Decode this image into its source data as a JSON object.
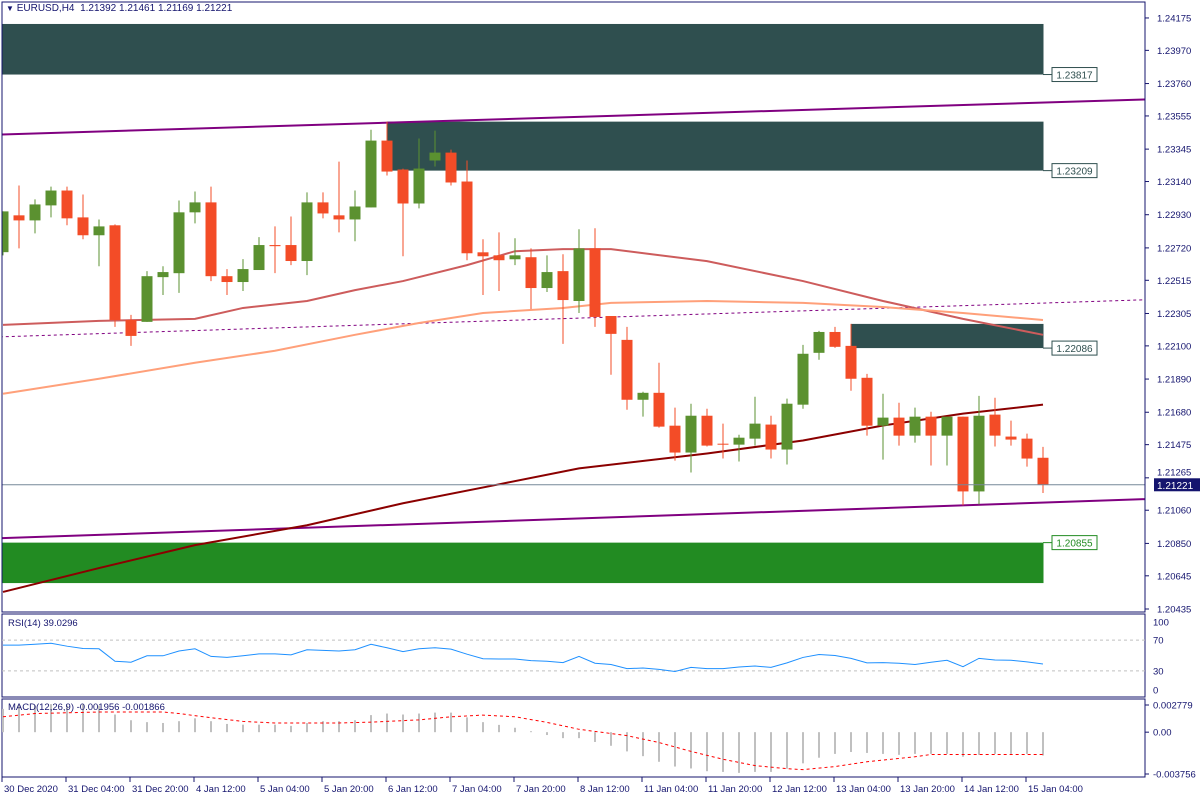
{
  "header": {
    "symbol": "EURUSD,H4",
    "open": "1.21392",
    "high": "1.21461",
    "low": "1.21169",
    "close": "1.21221",
    "menu_icon": "triangle-down-icon"
  },
  "colors": {
    "bull": "#5b9130",
    "bear": "#f34c27",
    "zone_dark": "#2f4f4f",
    "zone_green": "#228b22",
    "trendline": "#800080",
    "ma_fast": "#cd5c5c",
    "ma_mid": "#ffa07a",
    "ma_slow": "#8b0000",
    "rsi": "#1e90ff",
    "macd_hist": "#c0c0c0",
    "macd_signal": "#ff0000",
    "axis": "#14146e",
    "price_line": "#778899"
  },
  "chart_data": {
    "type": "candlestick",
    "price_axis": {
      "ylim": [
        1.20416,
        1.24276
      ],
      "ticks": [
        "1.24175",
        "1.23970",
        "1.23760",
        "1.23555",
        "1.23345",
        "1.23140",
        "1.22930",
        "1.22720",
        "1.22515",
        "1.22305",
        "1.22100",
        "1.21890",
        "1.21680",
        "1.21475",
        "1.21265",
        "1.21060",
        "1.20850",
        "1.20645",
        "1.20435"
      ]
    },
    "time_axis": {
      "labels": [
        "30 Dec 2020",
        "31 Dec 04:00",
        "31 Dec 20:00",
        "4 Jan 12:00",
        "5 Jan 04:00",
        "5 Jan 20:00",
        "6 Jan 12:00",
        "7 Jan 04:00",
        "7 Jan 20:00",
        "8 Jan 12:00",
        "11 Jan 04:00",
        "11 Jan 20:00",
        "12 Jan 12:00",
        "13 Jan 04:00",
        "13 Jan 20:00",
        "14 Jan 12:00",
        "15 Jan 04:00"
      ]
    },
    "ohlc_fields": [
      "open",
      "high",
      "low",
      "close"
    ],
    "ohlc": [
      [
        1.22693,
        1.22951,
        1.22673,
        1.22951
      ],
      [
        1.22926,
        1.23115,
        1.22717,
        1.22894
      ],
      [
        1.22894,
        1.23027,
        1.22812,
        1.22995
      ],
      [
        1.22989,
        1.23108,
        1.22913,
        1.23083
      ],
      [
        1.23083,
        1.23108,
        1.22863,
        1.22907
      ],
      [
        1.22913,
        1.23058,
        1.22775,
        1.228
      ],
      [
        1.228,
        1.229,
        1.22604,
        1.22856
      ],
      [
        1.22863,
        1.22869,
        1.2222,
        1.22264
      ],
      [
        1.22264,
        1.22296,
        1.221,
        1.22163
      ],
      [
        1.22252,
        1.22573,
        1.22252,
        1.22541
      ],
      [
        1.22535,
        1.22604,
        1.22422,
        1.22567
      ],
      [
        1.2256,
        1.2302,
        1.22435,
        1.22945
      ],
      [
        1.22945,
        1.23077,
        1.22875,
        1.23008
      ],
      [
        1.23008,
        1.23108,
        1.2251,
        1.22541
      ],
      [
        1.22541,
        1.22586,
        1.22422,
        1.22504
      ],
      [
        1.22504,
        1.22649,
        1.22447,
        1.22586
      ],
      [
        1.2258,
        1.22788,
        1.2258,
        1.22738
      ],
      [
        1.22738,
        1.22856,
        1.2256,
        1.22731
      ],
      [
        1.22738,
        1.22919,
        1.22611,
        1.22637
      ],
      [
        1.22637,
        1.23071,
        1.22548,
        1.23008
      ],
      [
        1.23008,
        1.23071,
        1.22907,
        1.22938
      ],
      [
        1.22926,
        1.23266,
        1.22818,
        1.229
      ],
      [
        1.229,
        1.23083,
        1.22762,
        1.22982
      ],
      [
        1.22976,
        1.23468,
        1.22976,
        1.23399
      ],
      [
        1.23399,
        1.23519,
        1.23178,
        1.23203
      ],
      [
        1.23216,
        1.23222,
        1.22667,
        1.23001
      ],
      [
        1.23001,
        1.23412,
        1.2297,
        1.23222
      ],
      [
        1.23273,
        1.23462,
        1.23235,
        1.23323
      ],
      [
        1.23323,
        1.23342,
        1.23115,
        1.23134
      ],
      [
        1.2314,
        1.23273,
        1.22642,
        1.22686
      ],
      [
        1.22692,
        1.22775,
        1.22422,
        1.22667
      ],
      [
        1.22673,
        1.22818,
        1.22447,
        1.22642
      ],
      [
        1.22648,
        1.22781,
        1.22611,
        1.22673
      ],
      [
        1.22661,
        1.22717,
        1.22333,
        1.22466
      ],
      [
        1.22466,
        1.22673,
        1.22441,
        1.22567
      ],
      [
        1.22573,
        1.2268,
        1.22113,
        1.2239
      ],
      [
        1.22384,
        1.22838,
        1.22308,
        1.22717
      ],
      [
        1.22717,
        1.22844,
        1.2222,
        1.22283
      ],
      [
        1.22289,
        1.22289,
        1.21917,
        1.22176
      ],
      [
        1.22138,
        1.2222,
        1.21696,
        1.21759
      ],
      [
        1.21759,
        1.2181,
        1.21652,
        1.21803
      ],
      [
        1.21803,
        1.21993,
        1.21583,
        1.21589
      ],
      [
        1.21595,
        1.21709,
        1.21374,
        1.21425
      ],
      [
        1.21425,
        1.21734,
        1.21299,
        1.21658
      ],
      [
        1.21658,
        1.21702,
        1.21463,
        1.21469
      ],
      [
        1.21481,
        1.21608,
        1.21387,
        1.21475
      ],
      [
        1.21475,
        1.21538,
        1.21368,
        1.21519
      ],
      [
        1.21513,
        1.21778,
        1.21469,
        1.21608
      ],
      [
        1.21602,
        1.21658,
        1.21387,
        1.21444
      ],
      [
        1.21444,
        1.21766,
        1.21349,
        1.21734
      ],
      [
        1.21728,
        1.22106,
        1.21702,
        1.2205
      ],
      [
        1.22056,
        1.22195,
        1.22012,
        1.22188
      ],
      [
        1.22188,
        1.2222,
        1.22087,
        1.22094
      ],
      [
        1.221,
        1.22239,
        1.21816,
        1.21892
      ],
      [
        1.21898,
        1.21923,
        1.21532,
        1.21595
      ],
      [
        1.21595,
        1.21797,
        1.2138,
        1.21646
      ],
      [
        1.21646,
        1.2174,
        1.21469,
        1.21532
      ],
      [
        1.21532,
        1.21709,
        1.21488,
        1.21652
      ],
      [
        1.21652,
        1.21683,
        1.21343,
        1.21532
      ],
      [
        1.21532,
        1.21652,
        1.21343,
        1.21652
      ],
      [
        1.21652,
        1.21652,
        1.21091,
        1.21179
      ],
      [
        1.21179,
        1.21784,
        1.21097,
        1.21658
      ],
      [
        1.21665,
        1.21772,
        1.21463,
        1.21532
      ],
      [
        1.21526,
        1.21627,
        1.21469,
        1.21507
      ],
      [
        1.21513,
        1.21545,
        1.21336,
        1.21387
      ],
      [
        1.21392,
        1.21461,
        1.21169,
        1.21221
      ]
    ],
    "current_price": "1.21221",
    "zones": [
      {
        "color": "#2f4f4f",
        "top": 1.24137,
        "bottom": 1.23817,
        "start_bar": -1,
        "end_bar": 65,
        "label": "1.23817"
      },
      {
        "color": "#2f4f4f",
        "top": 1.23519,
        "bottom": 1.23209,
        "start_bar": 24,
        "end_bar": 65,
        "label": "1.23209"
      },
      {
        "color": "#2f4f4f",
        "top": 1.22239,
        "bottom": 1.22086,
        "start_bar": 53,
        "end_bar": 65,
        "label": "1.22086"
      },
      {
        "color": "#228b22",
        "top": 1.20855,
        "bottom": 1.20599,
        "start_bar": -1,
        "end_bar": 65,
        "label": "1.20855"
      }
    ],
    "trendlines": [
      {
        "color": "#800080",
        "style": "solid",
        "points": [
          [
            -0.2,
            1.23437
          ],
          [
            74.8,
            1.2367
          ]
        ]
      },
      {
        "color": "#800080",
        "style": "solid",
        "points": [
          [
            -0.2,
            1.20883
          ],
          [
            74.8,
            1.21142
          ]
        ]
      },
      {
        "color": "#800080",
        "style": "dashed",
        "points": [
          [
            -0.2,
            1.22157
          ],
          [
            74.8,
            1.22403
          ]
        ]
      }
    ],
    "moving_averages": [
      {
        "color": "#cd5c5c",
        "points": [
          [
            0,
            1.22233
          ],
          [
            6,
            1.22258
          ],
          [
            12,
            1.22271
          ],
          [
            15,
            1.2234
          ],
          [
            19,
            1.22384
          ],
          [
            22,
            1.22453
          ],
          [
            25,
            1.2251
          ],
          [
            29,
            1.22611
          ],
          [
            32,
            1.22699
          ],
          [
            35,
            1.22712
          ],
          [
            38,
            1.22712
          ],
          [
            44,
            1.22636
          ],
          [
            50,
            1.2251
          ],
          [
            55,
            1.22384
          ],
          [
            60,
            1.22271
          ],
          [
            65,
            1.2217
          ]
        ]
      },
      {
        "color": "#ffa07a",
        "points": [
          [
            0,
            1.21797
          ],
          [
            6,
            1.21892
          ],
          [
            12,
            1.21993
          ],
          [
            17,
            1.22069
          ],
          [
            22,
            1.2217
          ],
          [
            26,
            1.22245
          ],
          [
            30,
            1.22308
          ],
          [
            35,
            1.2234
          ],
          [
            38,
            1.22372
          ],
          [
            44,
            1.22384
          ],
          [
            50,
            1.22372
          ],
          [
            55,
            1.22346
          ],
          [
            60,
            1.22308
          ],
          [
            65,
            1.22264
          ]
        ]
      },
      {
        "color": "#8b0000",
        "points": [
          [
            0,
            1.20543
          ],
          [
            6,
            1.20694
          ],
          [
            12,
            1.20839
          ],
          [
            19,
            1.20965
          ],
          [
            25,
            1.21104
          ],
          [
            31,
            1.21224
          ],
          [
            36,
            1.21325
          ],
          [
            44,
            1.21419
          ],
          [
            50,
            1.21501
          ],
          [
            55,
            1.21596
          ],
          [
            60,
            1.21671
          ],
          [
            65,
            1.21728
          ]
        ]
      }
    ],
    "rsi": {
      "title": "RSI(14)",
      "value": "39.0296",
      "levels": [
        70,
        30
      ],
      "axis_labels": [
        "100",
        "70",
        "30",
        "0"
      ],
      "ylim": [
        0,
        100
      ],
      "values": [
        63.4,
        63.4,
        64.6,
        65.9,
        62.1,
        59.1,
        58.7,
        42.5,
        41.3,
        49.6,
        49.6,
        55.8,
        58.7,
        48.8,
        47.5,
        49.6,
        52.1,
        52.1,
        50.8,
        57.5,
        56.7,
        55.8,
        57.5,
        64.6,
        60,
        55,
        58.8,
        60,
        58.3,
        51.7,
        45.8,
        45.4,
        45.4,
        43.3,
        42.5,
        40.8,
        48.8,
        40,
        38.3,
        32.9,
        33.8,
        32,
        29.2,
        34.6,
        32.9,
        32.9,
        35,
        36.3,
        34.6,
        40.4,
        47.5,
        51.3,
        50,
        46.3,
        40.4,
        40.8,
        40,
        38.3,
        41.3,
        43.8,
        35.4,
        46.3,
        44.2,
        43.8,
        41.7,
        39.03
      ]
    },
    "macd": {
      "title": "MACD(12,26,9)",
      "main_value": "-0.001956",
      "signal_value": "-0.001866",
      "axis_labels": [
        "0.002779",
        "0.00",
        "-0.003756"
      ],
      "ylim": [
        -0.003756,
        0.002779
      ],
      "histogram": [
        0.00195,
        0.00227,
        0.00222,
        0.00235,
        0.00222,
        0.00235,
        0.00222,
        0.00148,
        0.001,
        0.00084,
        0.00077,
        0.00092,
        0.00116,
        0.00092,
        0.00069,
        0.00063,
        0.00063,
        0.00063,
        0.00053,
        0.00077,
        0.00092,
        0.00092,
        0.001,
        0.00143,
        0.00156,
        0.00148,
        0.00156,
        0.00164,
        0.00164,
        0.00124,
        0.00084,
        0.00061,
        0.00037,
        8e-05,
        -0.00024,
        -0.0005,
        -0.0005,
        -0.00082,
        -0.00114,
        -0.00161,
        -0.00201,
        -0.00248,
        -0.00288,
        -0.00304,
        -0.00327,
        -0.00333,
        -0.00341,
        -0.00333,
        -0.00333,
        -0.00306,
        -0.00261,
        -0.00214,
        -0.00182,
        -0.00166,
        -0.00174,
        -0.00182,
        -0.0019,
        -0.00182,
        -0.00182,
        -0.00182,
        -0.00206,
        -0.0019,
        -0.00182,
        -0.00182,
        -0.00182,
        -0.001956
      ],
      "signal": [
        [
          0,
          0.00129
        ],
        [
          2,
          0.00156
        ],
        [
          6,
          0.00169
        ],
        [
          10,
          0.00169
        ],
        [
          11,
          0.00156
        ],
        [
          13,
          0.00121
        ],
        [
          15,
          0.0009
        ],
        [
          17,
          0.00077
        ],
        [
          21,
          0.00077
        ],
        [
          23,
          0.00084
        ],
        [
          26,
          0.00103
        ],
        [
          28,
          0.00129
        ],
        [
          30,
          0.00143
        ],
        [
          32,
          0.00129
        ],
        [
          34,
          0.00082
        ],
        [
          36,
          0.00024
        ],
        [
          39,
          -0.00029
        ],
        [
          41,
          -0.00087
        ],
        [
          43,
          -0.00161
        ],
        [
          45,
          -0.00227
        ],
        [
          47,
          -0.0028
        ],
        [
          49,
          -0.00306
        ],
        [
          50,
          -0.00314
        ],
        [
          52,
          -0.00288
        ],
        [
          54,
          -0.00248
        ],
        [
          57,
          -0.00206
        ],
        [
          58,
          -0.00187
        ],
        [
          60,
          -0.00187
        ],
        [
          65,
          -0.001866
        ]
      ]
    }
  }
}
